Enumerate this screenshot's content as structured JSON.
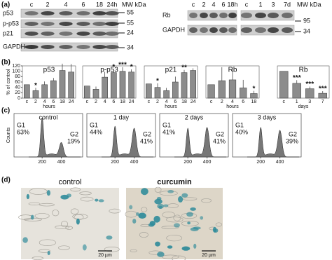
{
  "panel_labels": [
    "(a)",
    "(b)",
    "(c)",
    "(d)"
  ],
  "blots": {
    "left": {
      "lanes": [
        "c",
        "2",
        "4",
        "6",
        "18",
        "24h"
      ],
      "rows": [
        "p53",
        "p-p53",
        "p21",
        "GAPDH"
      ],
      "mw_title": "MW kDa",
      "mw": [
        55,
        55,
        24,
        34
      ]
    },
    "middle": {
      "lanes": [
        "c",
        "2",
        "4",
        "6",
        "18h"
      ],
      "rows": [
        "Rb",
        "GAPDH"
      ]
    },
    "right": {
      "lanes": [
        "c",
        "1",
        "3",
        "7d"
      ],
      "mw_title": "MW kDa",
      "mw": [
        95,
        34
      ]
    }
  },
  "chart_data": [
    {
      "type": "bar",
      "title": "p53",
      "ylabel": "% of control",
      "xlabel": "hours",
      "categories": [
        "c",
        "2",
        "4",
        "6",
        "18",
        "24"
      ],
      "values": [
        50,
        28,
        50,
        65,
        103,
        97
      ],
      "errors": [
        0,
        10,
        12,
        10,
        25,
        30
      ],
      "annotations": [
        null,
        "*",
        null,
        null,
        null,
        null
      ],
      "ylim": [
        0,
        120
      ],
      "yticks": [
        0,
        20,
        40,
        60,
        80,
        100,
        120
      ],
      "color": "#8c8c8c"
    },
    {
      "type": "bar",
      "title": "p-p53",
      "categories": [
        "c",
        "2",
        "4",
        "6",
        "18",
        "24"
      ],
      "values": [
        45,
        33,
        78,
        95,
        100,
        97
      ],
      "errors": [
        0,
        10,
        20,
        12,
        15,
        10
      ],
      "annotations": [
        null,
        null,
        null,
        "*",
        "***",
        "*"
      ],
      "ylim": [
        0,
        120
      ],
      "color": "#8c8c8c"
    },
    {
      "type": "bar",
      "title": "p21",
      "xlabel": "hours",
      "categories": [
        "c",
        "2",
        "4",
        "6",
        "18",
        "24"
      ],
      "values": [
        53,
        40,
        28,
        60,
        95,
        103
      ],
      "errors": [
        0,
        15,
        10,
        20,
        10,
        8
      ],
      "annotations": [
        null,
        "*",
        null,
        null,
        "**",
        null
      ],
      "ylim": [
        0,
        120
      ],
      "color": "#8c8c8c"
    },
    {
      "type": "bar",
      "title": "Rb",
      "xlabel": "hours",
      "categories": [
        "c",
        "2",
        "4",
        "6",
        "18"
      ],
      "values": [
        50,
        65,
        68,
        38,
        17
      ],
      "errors": [
        0,
        50,
        40,
        30,
        10
      ],
      "annotations": [
        null,
        null,
        null,
        null,
        "*"
      ],
      "ylim": [
        0,
        120
      ],
      "color": "#8c8c8c"
    },
    {
      "type": "bar",
      "title": "Rb",
      "xlabel": "days",
      "categories": [
        "c",
        "1",
        "3",
        "7"
      ],
      "values": [
        100,
        55,
        35,
        18
      ],
      "errors": [
        0,
        12,
        8,
        8
      ],
      "annotations": [
        null,
        "***",
        "***",
        "***"
      ],
      "ylim": [
        0,
        120
      ],
      "color": "#8c8c8c"
    }
  ],
  "flow": {
    "ylabel": "Counts",
    "xticks": [
      200,
      400
    ],
    "panels": [
      {
        "title": "control",
        "g1": "G1",
        "g1_value": "63%",
        "g2": "G2",
        "g2_value": "19%"
      },
      {
        "title": "1 day",
        "g1": "G1",
        "g1_value": "44%",
        "g2": "G2",
        "g2_value": "41%"
      },
      {
        "title": "2 days",
        "g1": "G1",
        "g1_value": "41%",
        "g2": "G2",
        "g2_value": "41%"
      },
      {
        "title": "3 days",
        "g1": "G1",
        "g1_value": "40%",
        "g2": "G2",
        "g2_value": "39%"
      }
    ]
  },
  "micrographs": {
    "panels": [
      {
        "title": "control",
        "scale": "20 µm"
      },
      {
        "title": "curcumin",
        "scale": "20 µm"
      }
    ]
  }
}
